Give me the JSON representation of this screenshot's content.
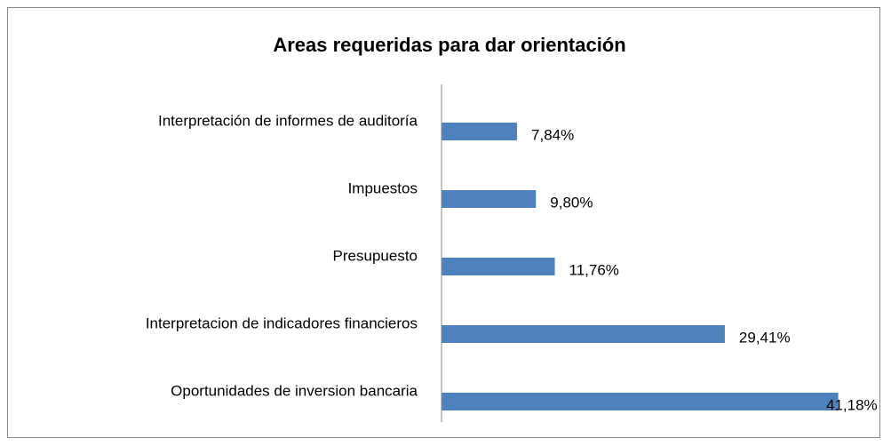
{
  "chart_data": {
    "type": "barh",
    "title": "Areas requeridas para dar orientación",
    "categories": [
      "Interpretación de informes de auditoría",
      "Impuestos",
      "Presupuesto",
      "Interpretacion de indicadores financieros",
      "Oportunidades de inversion bancaria"
    ],
    "values": [
      7.84,
      9.8,
      11.76,
      29.41,
      41.18
    ],
    "value_labels": [
      "7,84%",
      "9,80%",
      "11,76%",
      "29,41%",
      "41,18%"
    ],
    "color": "#4f81bd",
    "xlim": [
      0,
      45
    ]
  }
}
